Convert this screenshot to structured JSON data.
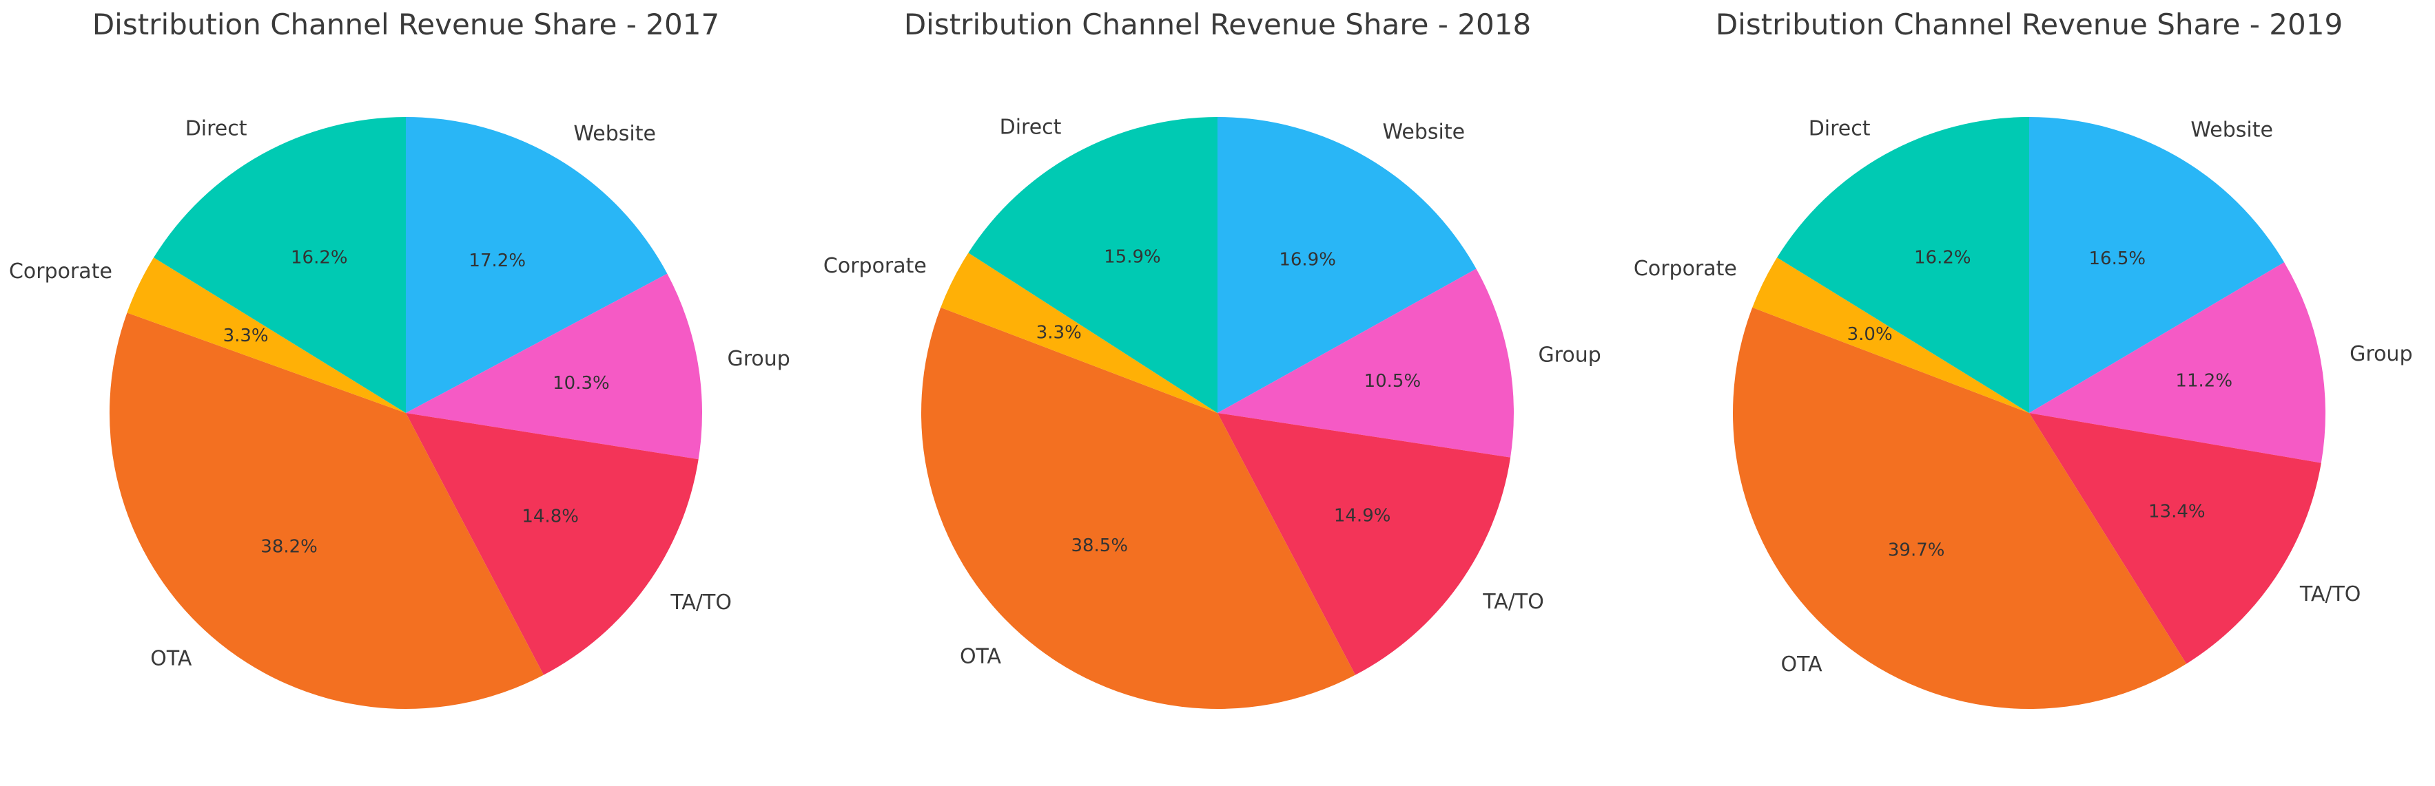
{
  "page": {
    "background": "#ffffff",
    "text_color": "#3a3a3a"
  },
  "chart_data": [
    {
      "type": "pie",
      "title": "Distribution Channel Revenue Share - 2017",
      "labels": [
        "Website",
        "Group",
        "TA/TO",
        "OTA",
        "Corporate",
        "Direct"
      ],
      "values": [
        17.2,
        10.3,
        14.8,
        38.2,
        3.3,
        16.2
      ],
      "pct_labels": [
        "17.2%",
        "10.3%",
        "14.8%",
        "38.2%",
        "3.3%",
        "16.2%"
      ],
      "colors": [
        "#29b6f6",
        "#f55ac5",
        "#f33458",
        "#f37021",
        "#ffb006",
        "#00cab3"
      ],
      "start_angle_deg": 90,
      "direction": "clockwise",
      "legend": false,
      "label_distance": 1.1,
      "pct_distance": 0.6
    },
    {
      "type": "pie",
      "title": "Distribution Channel Revenue Share - 2018",
      "labels": [
        "Website",
        "Group",
        "TA/TO",
        "OTA",
        "Corporate",
        "Direct"
      ],
      "values": [
        16.9,
        10.5,
        14.9,
        38.5,
        3.3,
        15.9
      ],
      "pct_labels": [
        "16.9%",
        "10.5%",
        "14.9%",
        "38.5%",
        "3.3%",
        "15.9%"
      ],
      "colors": [
        "#29b6f6",
        "#f55ac5",
        "#f33458",
        "#f37021",
        "#ffb006",
        "#00cab3"
      ],
      "start_angle_deg": 90,
      "direction": "clockwise",
      "legend": false,
      "label_distance": 1.1,
      "pct_distance": 0.6
    },
    {
      "type": "pie",
      "title": "Distribution Channel Revenue Share - 2019",
      "labels": [
        "Website",
        "Group",
        "TA/TO",
        "OTA",
        "Corporate",
        "Direct"
      ],
      "values": [
        16.5,
        11.2,
        13.4,
        39.7,
        3.0,
        16.2
      ],
      "pct_labels": [
        "16.5%",
        "11.2%",
        "13.4%",
        "39.7%",
        "3.0%",
        "16.2%"
      ],
      "colors": [
        "#29b6f6",
        "#f55ac5",
        "#f33458",
        "#f37021",
        "#ffb006",
        "#00cab3"
      ],
      "start_angle_deg": 90,
      "direction": "clockwise",
      "legend": false,
      "label_distance": 1.1,
      "pct_distance": 0.6
    }
  ]
}
